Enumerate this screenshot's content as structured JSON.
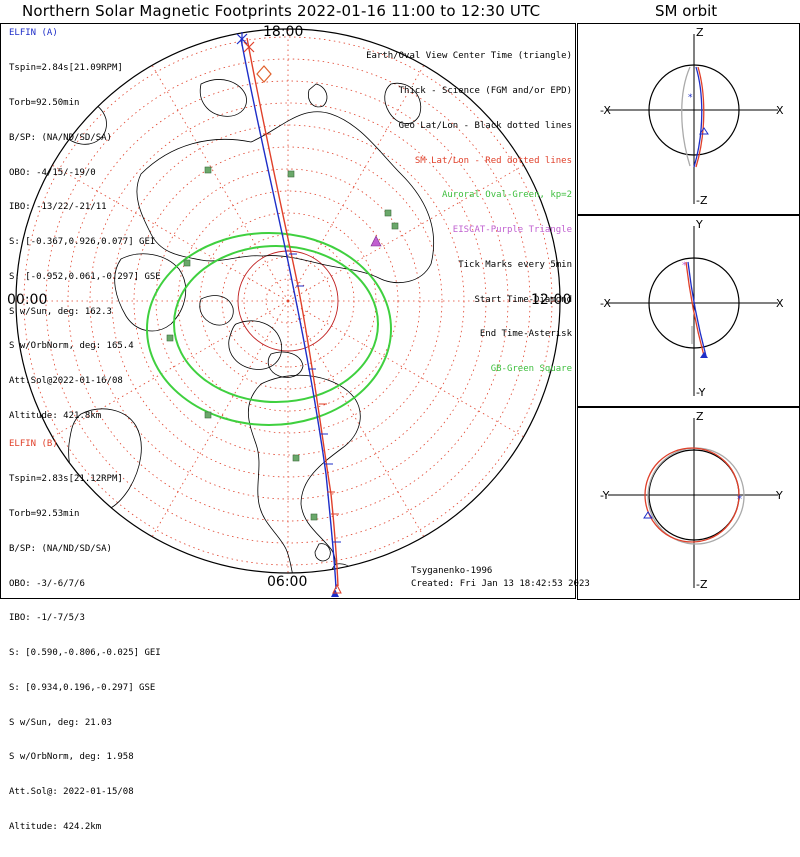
{
  "title": "Northern Solar Magnetic Footprints 2022-01-16 11:00 to 12:30 UTC",
  "orbit_title": "SM orbit",
  "clock_labels": {
    "top": "18:00",
    "left": "00:00",
    "right": "12:00",
    "bottom": "06:00"
  },
  "elfin_a": {
    "name": "ELFIN (A)",
    "lines": [
      "Tspin=2.84s[21.09RPM]",
      "Torb=92.50min",
      "B/SP: (NA/ND/SD/SA)",
      "OBO: -4/15/-19/0",
      "IBO: -13/22/-21/11",
      "S: [-0.367,0.926,0.077] GEI",
      "S: [-0.952,0.061,-0.297] GSE",
      "S w/Sun, deg: 162.3",
      "S w/OrbNorm, deg: 165.4",
      "Att.Sol@2022-01-16/08",
      "Altitude: 421.8km"
    ]
  },
  "elfin_b": {
    "name": "ELFIN (B)",
    "lines": [
      "Tspin=2.83s[21.12RPM]",
      "Torb=92.53min",
      "B/SP: (NA/ND/SD/SA)",
      "OBO: -3/-6/7/6",
      "IBO: -1/-7/5/3",
      "S: [0.590,-0.806,-0.025] GEI",
      "S: [0.934,0.196,-0.297] GSE",
      "S w/Sun, deg: 21.03",
      "S w/OrbNorm, deg: 1.958",
      "Att.Sol@: 2022-01-15/08",
      "Altitude: 424.2km"
    ]
  },
  "legend": {
    "earth": "Earth/Oval View Center Time (triangle)",
    "thick": "Thick - Science (FGM and/or EPD)",
    "geo": "Geo Lat/Lon - Black dotted lines",
    "sm": "SM Lat/Lon - Red dotted lines",
    "auroral": "Auroral Oval-Green, kp=2",
    "eiscat": "EISCAT-Purple Triangle",
    "tick": "Tick Marks every 5min",
    "start": "Start Time-Diamond",
    "end": "End Time-Asterisk",
    "gb": "GB-Green Square"
  },
  "footer": {
    "author": "Tsyganenko-1996",
    "created": "Created: Fri Jan 13 18:42:53 2023"
  },
  "orbit_panels": [
    {
      "top": "Z",
      "bottom": "-Z",
      "left": "-X",
      "right": "X"
    },
    {
      "top": "Y",
      "bottom": "-Y",
      "left": "-X",
      "right": "X"
    },
    {
      "top": "Z",
      "bottom": "-Z",
      "left": "-Y",
      "right": "Y"
    }
  ],
  "colors": {
    "elfin_a": "#1e2ec8",
    "elfin_b": "#e0402a",
    "auroral_oval": "#3fd03f",
    "sm_grid": "#e0402a",
    "ground_station": "#5a9a5a",
    "eiscat": "#c060d0"
  }
}
